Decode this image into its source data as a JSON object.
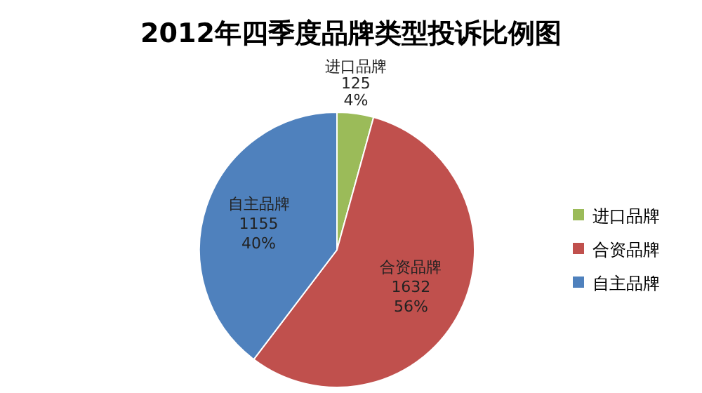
{
  "chart_data": {
    "type": "pie",
    "title": "2012年四季度品牌类型投诉比例图",
    "categories": [
      "进口品牌",
      "合资品牌",
      "自主品牌"
    ],
    "values": [
      125,
      1632,
      1155
    ],
    "value_labels": [
      "125\n4%",
      "1632\n56%",
      "1155\n40%"
    ],
    "colors": [
      "#9bbb59",
      "#c0504d",
      "#4f81bd"
    ],
    "legend": "right"
  }
}
